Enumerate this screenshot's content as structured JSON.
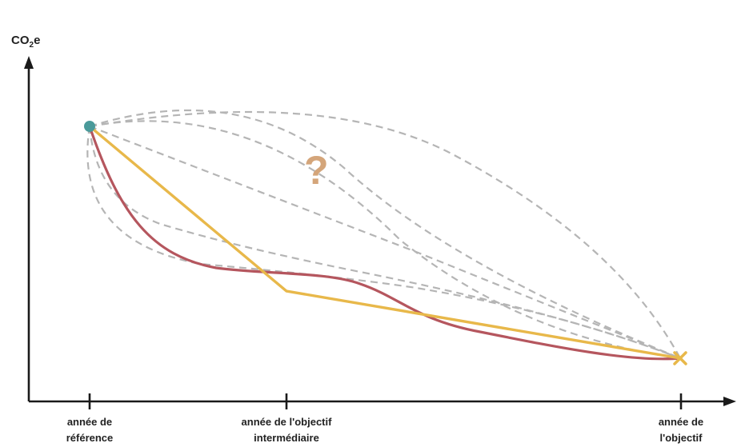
{
  "diagram": {
    "y_axis_title": {
      "main": "CO",
      "sub": "2",
      "suffix": "e"
    },
    "x_ticks": [
      {
        "line1": "année de",
        "line2": "référence"
      },
      {
        "line1": "année de l'objectif",
        "line2": "intermédiaire"
      },
      {
        "line1": "année de",
        "line2": "l'objectif"
      }
    ],
    "unknown_marker": "?",
    "colors": {
      "axis": "#1a1a1a",
      "dashed": "#b5b5b5",
      "linear_path": "#e8b84a",
      "curved_path": "#b5565e",
      "start_point": "#4a9a9a",
      "end_marker": "#e8b84a",
      "question": "#d4a57a"
    },
    "icons": {
      "end_marker": "x-mark-icon",
      "start_point": "dot-icon"
    }
  }
}
